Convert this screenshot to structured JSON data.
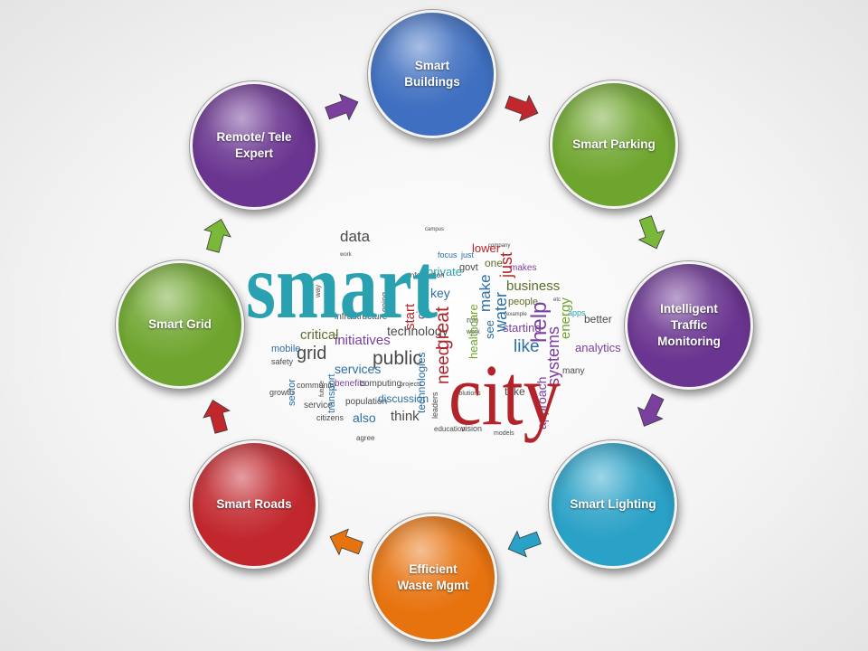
{
  "diagram": {
    "nodes": [
      {
        "id": "smart-buildings",
        "label": "Smart\nBuildings",
        "color": "#3f6fc0"
      },
      {
        "id": "smart-parking",
        "label": "Smart Parking",
        "color": "#6ea52e"
      },
      {
        "id": "intelligent-traffic-monitoring",
        "label": "Intelligent\nTraffic\nMonitoring",
        "color": "#6a3590"
      },
      {
        "id": "smart-lighting",
        "label": "Smart Lighting",
        "color": "#2aa1c6"
      },
      {
        "id": "efficient-waste-mgmt",
        "label": "Efficient\nWaste Mgmt",
        "color": "#e7730f"
      },
      {
        "id": "smart-roads",
        "label": "Smart Roads",
        "color": "#c1272d"
      },
      {
        "id": "smart-grid",
        "label": "Smart Grid",
        "color": "#6ea52e"
      },
      {
        "id": "remote-tele-expert",
        "label": "Remote/ Tele\nExpert",
        "color": "#6a3590"
      }
    ],
    "arrows": [
      {
        "from": "remote-tele-expert",
        "to": "smart-buildings",
        "color": "#7b3f9e"
      },
      {
        "from": "smart-buildings",
        "to": "smart-parking",
        "color": "#c1272d"
      },
      {
        "from": "smart-parking",
        "to": "intelligent-traffic-monitoring",
        "color": "#7ab83a"
      },
      {
        "from": "intelligent-traffic-monitoring",
        "to": "smart-lighting",
        "color": "#7b3f9e"
      },
      {
        "from": "smart-lighting",
        "to": "efficient-waste-mgmt",
        "color": "#2aa1c6"
      },
      {
        "from": "efficient-waste-mgmt",
        "to": "smart-roads",
        "color": "#e7730f"
      },
      {
        "from": "smart-roads",
        "to": "smart-grid",
        "color": "#c1272d"
      },
      {
        "from": "smart-grid",
        "to": "remote-tele-expert",
        "color": "#7ab83a"
      }
    ]
  },
  "word_cloud": {
    "words": [
      {
        "id": "smart",
        "text": "smart",
        "color": "#2aa1b0"
      },
      {
        "id": "city",
        "text": "city",
        "color": "#b3242a"
      },
      {
        "id": "data",
        "text": "data",
        "color": "#4a4a4a"
      },
      {
        "id": "business",
        "text": "business",
        "color": "#5b6e2a"
      },
      {
        "id": "help",
        "text": "help",
        "color": "#7b3f9e"
      },
      {
        "id": "water",
        "text": "water",
        "color": "#2b6fa6"
      },
      {
        "id": "make",
        "text": "make",
        "color": "#2b6fa6"
      },
      {
        "id": "great",
        "text": "great",
        "color": "#b3242a"
      },
      {
        "id": "like",
        "text": "like",
        "color": "#2b6fa6"
      },
      {
        "id": "systems",
        "text": "systems",
        "color": "#7b3f9e"
      },
      {
        "id": "energy",
        "text": "energy",
        "color": "#6ea52e"
      },
      {
        "id": "technology",
        "text": "technology",
        "color": "#4a4a4a"
      },
      {
        "id": "public",
        "text": "public",
        "color": "#4a4a4a"
      },
      {
        "id": "services",
        "text": "services",
        "color": "#2b6fa6"
      },
      {
        "id": "critical",
        "text": "critical",
        "color": "#5b6e2a"
      },
      {
        "id": "grid",
        "text": "grid",
        "color": "#4a4a4a"
      },
      {
        "id": "infrastructure",
        "text": "infrastructure",
        "color": "#4a4a4a"
      },
      {
        "id": "initiatives",
        "text": "initiatives",
        "color": "#7b3f9e"
      },
      {
        "id": "transport",
        "text": "transport",
        "color": "#2b6fa6"
      },
      {
        "id": "private",
        "text": "private",
        "color": "#2aa1b0"
      },
      {
        "id": "key",
        "text": "key",
        "color": "#2b6fa6"
      },
      {
        "id": "start",
        "text": "start",
        "color": "#b3242a"
      },
      {
        "id": "cios",
        "text": "cios",
        "color": "#7b3f9e"
      },
      {
        "id": "best",
        "text": "best",
        "color": "#4a4a4a"
      },
      {
        "id": "govt",
        "text": "govt",
        "color": "#5b6e2a"
      },
      {
        "id": "one",
        "text": "one",
        "color": "#b3242a"
      },
      {
        "id": "lower",
        "text": "lower",
        "color": "#2b6fa6"
      },
      {
        "id": "focus",
        "text": "focus",
        "color": "#2b6fa6"
      },
      {
        "id": "just",
        "text": "just",
        "color": "#b3242a"
      },
      {
        "id": "makes",
        "text": "makes",
        "color": "#7b3f9e"
      },
      {
        "id": "people",
        "text": "people",
        "color": "#5b6e2a"
      },
      {
        "id": "starting",
        "text": "starting",
        "color": "#7b3f9e"
      },
      {
        "id": "healthcare",
        "text": "healthcare",
        "color": "#6ea52e"
      },
      {
        "id": "need",
        "text": "need",
        "color": "#b3242a"
      },
      {
        "id": "see",
        "text": "see",
        "color": "#2b6fa6"
      },
      {
        "id": "apps",
        "text": "apps",
        "color": "#2aa1b0"
      },
      {
        "id": "better",
        "text": "better",
        "color": "#4a4a4a"
      },
      {
        "id": "analytics",
        "text": "analytics",
        "color": "#7b3f9e"
      },
      {
        "id": "many",
        "text": "many",
        "color": "#4a4a4a"
      },
      {
        "id": "approach",
        "text": "approach",
        "color": "#7b3f9e"
      },
      {
        "id": "take",
        "text": "take",
        "color": "#4a4a4a"
      },
      {
        "id": "technologies",
        "text": "technologies",
        "color": "#2b6fa6"
      },
      {
        "id": "discussion",
        "text": "discussion",
        "color": "#2b6fa6"
      },
      {
        "id": "think",
        "text": "think",
        "color": "#4a4a4a"
      },
      {
        "id": "also",
        "text": "also",
        "color": "#2b6fa6"
      },
      {
        "id": "population",
        "text": "population",
        "color": "#4a4a4a"
      },
      {
        "id": "computing",
        "text": "computing",
        "color": "#4a4a4a"
      },
      {
        "id": "benefits",
        "text": "benefits",
        "color": "#7b3f9e"
      },
      {
        "id": "community",
        "text": "community",
        "color": "#4a4a4a"
      },
      {
        "id": "service",
        "text": "service",
        "color": "#4a4a4a"
      },
      {
        "id": "mobile",
        "text": "mobile",
        "color": "#2b6fa6"
      },
      {
        "id": "safety",
        "text": "safety",
        "color": "#4a4a4a"
      },
      {
        "id": "sector",
        "text": "sector",
        "color": "#2b6fa6"
      },
      {
        "id": "leaders",
        "text": "leaders",
        "color": "#4a4a4a"
      },
      {
        "id": "education",
        "text": "education",
        "color": "#4a4a4a"
      },
      {
        "id": "vision",
        "text": "vision",
        "color": "#4a4a4a"
      },
      {
        "id": "citizens",
        "text": "citizens",
        "color": "#4a4a4a"
      },
      {
        "id": "agree",
        "text": "agree",
        "color": "#4a4a4a"
      },
      {
        "id": "models",
        "text": "models",
        "color": "#4a4a4a"
      },
      {
        "id": "buildings",
        "text": "buildings",
        "color": "#4a4a4a"
      },
      {
        "id": "going",
        "text": "going",
        "color": "#4a4a4a"
      },
      {
        "id": "way",
        "text": "way",
        "color": "#4a4a4a"
      },
      {
        "id": "growth",
        "text": "growth",
        "color": "#4a4a4a"
      },
      {
        "id": "projects",
        "text": "projects",
        "color": "#4a4a4a"
      },
      {
        "id": "future",
        "text": "future",
        "color": "#4a4a4a"
      },
      {
        "id": "real",
        "text": "real",
        "color": "#4a4a4a"
      },
      {
        "id": "information",
        "text": "information",
        "color": "#4a4a4a"
      },
      {
        "id": "solutions",
        "text": "solutions",
        "color": "#4a4a4a"
      },
      {
        "id": "example",
        "text": "example",
        "color": "#4a4a4a"
      },
      {
        "id": "etc",
        "text": "etc",
        "color": "#4a4a4a"
      },
      {
        "id": "run",
        "text": "run",
        "color": "#4a4a4a"
      },
      {
        "id": "work",
        "text": "work",
        "color": "#4a4a4a"
      },
      {
        "id": "campus",
        "text": "campus",
        "color": "#4a4a4a"
      },
      {
        "id": "company",
        "text": "company",
        "color": "#4a4a4a"
      }
    ]
  }
}
